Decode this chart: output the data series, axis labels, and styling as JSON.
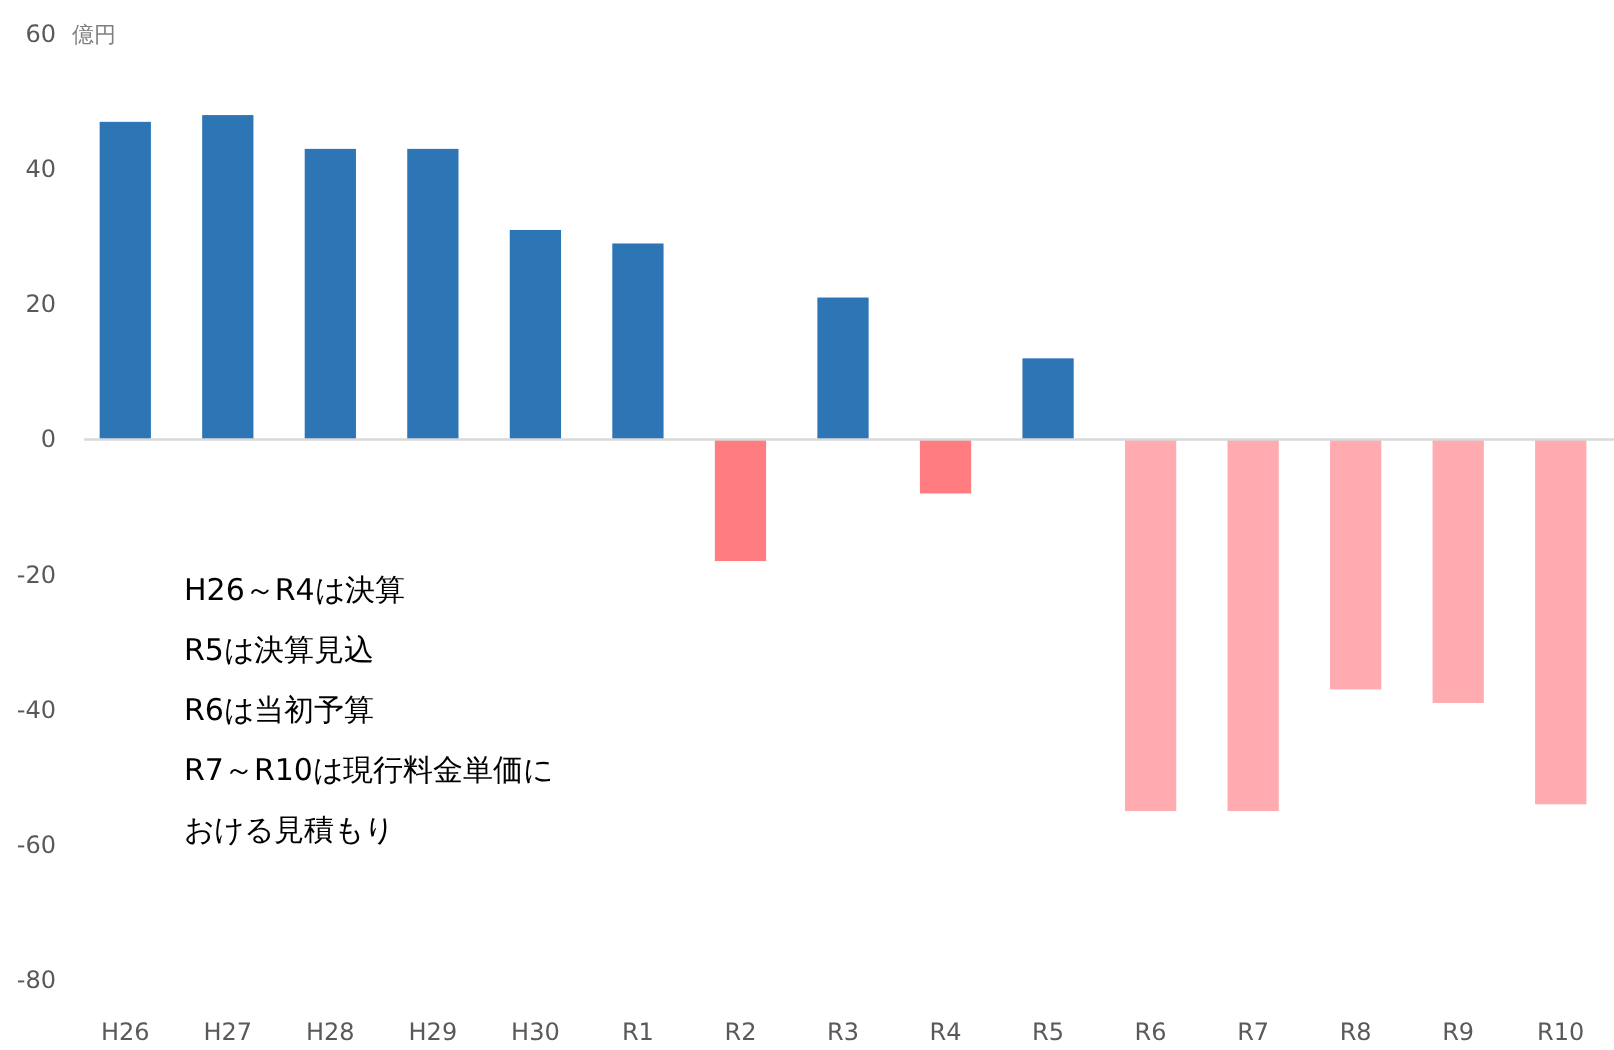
{
  "chart_data": {
    "type": "bar",
    "ylabel": "億円",
    "categories": [
      "H26",
      "H27",
      "H28",
      "H29",
      "H30",
      "R1",
      "R2",
      "R3",
      "R4",
      "R5",
      "R6",
      "R7",
      "R8",
      "R9",
      "R10"
    ],
    "values": [
      47,
      48,
      43,
      43,
      31,
      29,
      -18,
      21,
      -8,
      12,
      -55,
      -55,
      -37,
      -39,
      -54
    ],
    "colors": [
      "#2e75b6",
      "#2e75b6",
      "#2e75b6",
      "#2e75b6",
      "#2e75b6",
      "#2e75b6",
      "#ff7c80",
      "#2e75b6",
      "#ff7c80",
      "#2e75b6",
      "#ffabb0",
      "#ffabb0",
      "#ffabb0",
      "#ffabb0",
      "#ffabb0"
    ],
    "ylim": [
      -80,
      60
    ],
    "yticks": [
      -80,
      -60,
      -40,
      -20,
      0,
      20,
      40,
      60
    ],
    "annotations": [
      "H26～R4は決算",
      "R5は決算見込",
      "R6は当初予算",
      "R7～R10は現行料金単価に",
      "おける見積もり"
    ]
  }
}
